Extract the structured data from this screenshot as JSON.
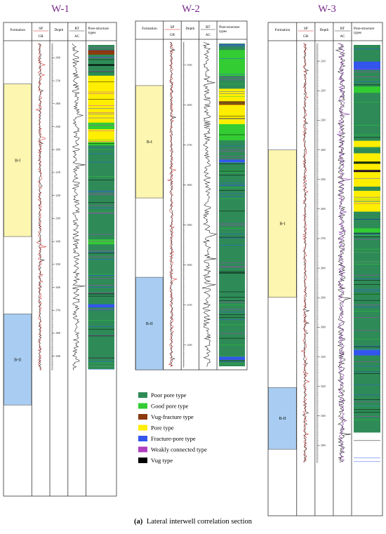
{
  "caption": {
    "label": "(a)",
    "text": "Lateral interwell correlation section"
  },
  "headers": {
    "formation": "Formation",
    "sp": "SP",
    "gr": "GR",
    "depth": "Depth",
    "rt": "RT",
    "ac": "AC",
    "pore_line1": "Pore-structure",
    "pore_line2": "types"
  },
  "pore_types": [
    {
      "key": "poor",
      "label": "Poor pore type",
      "color": "#2e8b57"
    },
    {
      "key": "good",
      "label": "Good pore type",
      "color": "#33cc33"
    },
    {
      "key": "vug_fracture",
      "label": "Vug-fracture type",
      "color": "#8b3a0e"
    },
    {
      "key": "pore",
      "label": "Pore type",
      "color": "#ffee00"
    },
    {
      "key": "fracture_pore",
      "label": "Fracture-pore type",
      "color": "#3355ee"
    },
    {
      "key": "weakly_connected",
      "label": "Weakly connected type",
      "color": "#b040c0"
    },
    {
      "key": "vug",
      "label": "Vug type",
      "color": "#000000"
    }
  ],
  "colors": {
    "formation_b1": "#fdf6b0",
    "formation_b2": "#a9cdf2",
    "sp_curve": "#cc2222",
    "gr_curve": "#222222",
    "rt_curve": "#7b2da0",
    "ac_curve": "#111111",
    "title": "#7a2a8a"
  },
  "wells": [
    {
      "name": "W-1",
      "depth_ticks": [
        "2600",
        "2700",
        "2800",
        "2900",
        "3000",
        "3100",
        "3200",
        "3300",
        "3400",
        "3500",
        "3600",
        "3700",
        "3800",
        "3900"
      ],
      "formations": [
        {
          "label": "B-I",
          "kind": "b1",
          "from": 0.095,
          "to": 0.43
        },
        {
          "label": "B-II",
          "kind": "b2",
          "from": 0.6,
          "to": 0.8
        }
      ],
      "pore_intervals": [
        {
          "type": "poor",
          "from": 0.0,
          "to": 1.0
        },
        {
          "type": "vug_fracture",
          "from": 0.015,
          "to": 0.03
        },
        {
          "type": "vug",
          "from": 0.06,
          "to": 0.064
        },
        {
          "type": "pore",
          "from": 0.095,
          "to": 0.24
        },
        {
          "type": "good",
          "from": 0.24,
          "to": 0.26
        },
        {
          "type": "pore",
          "from": 0.26,
          "to": 0.3
        },
        {
          "type": "good",
          "from": 0.3,
          "to": 0.31
        },
        {
          "type": "good",
          "from": 0.6,
          "to": 0.615
        },
        {
          "type": "fracture_pore",
          "from": 0.8,
          "to": 0.81
        }
      ]
    },
    {
      "name": "W-2",
      "depth_ticks": [
        "2500",
        "2600",
        "2700",
        "2800",
        "2900",
        "3000",
        "3100",
        "3200"
      ],
      "formations": [
        {
          "label": "B-I",
          "kind": "b1",
          "from": 0.14,
          "to": 0.48
        },
        {
          "label": "B-II",
          "kind": "b2",
          "from": 0.72,
          "to": 1.0
        }
      ],
      "pore_intervals": [
        {
          "type": "poor",
          "from": 0.0,
          "to": 1.0
        },
        {
          "type": "good",
          "from": 0.02,
          "to": 0.1
        },
        {
          "type": "pore",
          "from": 0.14,
          "to": 0.25
        },
        {
          "type": "vug_fracture",
          "from": 0.18,
          "to": 0.19
        },
        {
          "type": "good",
          "from": 0.25,
          "to": 0.3
        },
        {
          "type": "fracture_pore",
          "from": 0.36,
          "to": 0.37
        },
        {
          "type": "fracture_pore",
          "from": 0.97,
          "to": 0.98
        }
      ]
    },
    {
      "name": "W-3",
      "depth_ticks": [
        "2100",
        "2200",
        "2300",
        "2400",
        "2500",
        "2600",
        "2700",
        "2800",
        "2900",
        "3000",
        "3100",
        "3200",
        "3300",
        "3400"
      ],
      "formations": [
        {
          "label": "B-I",
          "kind": "b1",
          "from": 0.23,
          "to": 0.54
        },
        {
          "label": "B-II",
          "kind": "b2",
          "from": 0.73,
          "to": 0.86
        }
      ],
      "pore_intervals": [
        {
          "type": "poor",
          "from": 0.0,
          "to": 0.93
        },
        {
          "type": "fracture_pore",
          "from": 0.04,
          "to": 0.06
        },
        {
          "type": "good",
          "from": 0.1,
          "to": 0.115
        },
        {
          "type": "pore",
          "from": 0.23,
          "to": 0.245
        },
        {
          "type": "pore",
          "from": 0.26,
          "to": 0.34
        },
        {
          "type": "vug",
          "from": 0.28,
          "to": 0.285
        },
        {
          "type": "vug",
          "from": 0.3,
          "to": 0.305
        },
        {
          "type": "pore",
          "from": 0.35,
          "to": 0.4
        },
        {
          "type": "good",
          "from": 0.44,
          "to": 0.45
        },
        {
          "type": "fracture_pore",
          "from": 0.73,
          "to": 0.745
        }
      ]
    }
  ]
}
